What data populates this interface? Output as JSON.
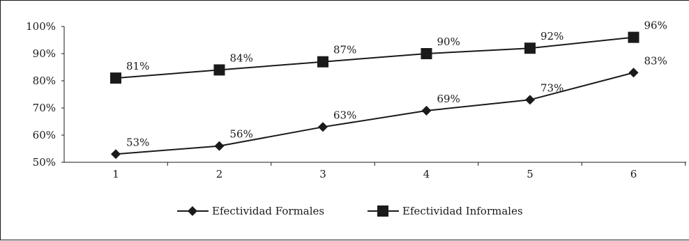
{
  "chart_data": {
    "type": "line",
    "x": [
      "1",
      "2",
      "3",
      "4",
      "5",
      "6"
    ],
    "y_ticks": [
      "50%",
      "60%",
      "70%",
      "80%",
      "90%",
      "100%"
    ],
    "ylim": [
      50,
      100
    ],
    "grid": false,
    "legend_position": "bottom",
    "series": [
      {
        "name": "Efectividad Formales",
        "marker": "diamond",
        "values": [
          53,
          56,
          63,
          69,
          73,
          83
        ],
        "labels": [
          "53%",
          "56%",
          "63%",
          "69%",
          "73%",
          "83%"
        ]
      },
      {
        "name": "Efectividad Informales",
        "marker": "square",
        "values": [
          81,
          84,
          87,
          90,
          92,
          96
        ],
        "labels": [
          "81%",
          "84%",
          "87%",
          "90%",
          "92%",
          "96%"
        ]
      }
    ],
    "colors": {
      "series": "#1a1a1a",
      "background": "#ffffff"
    }
  }
}
